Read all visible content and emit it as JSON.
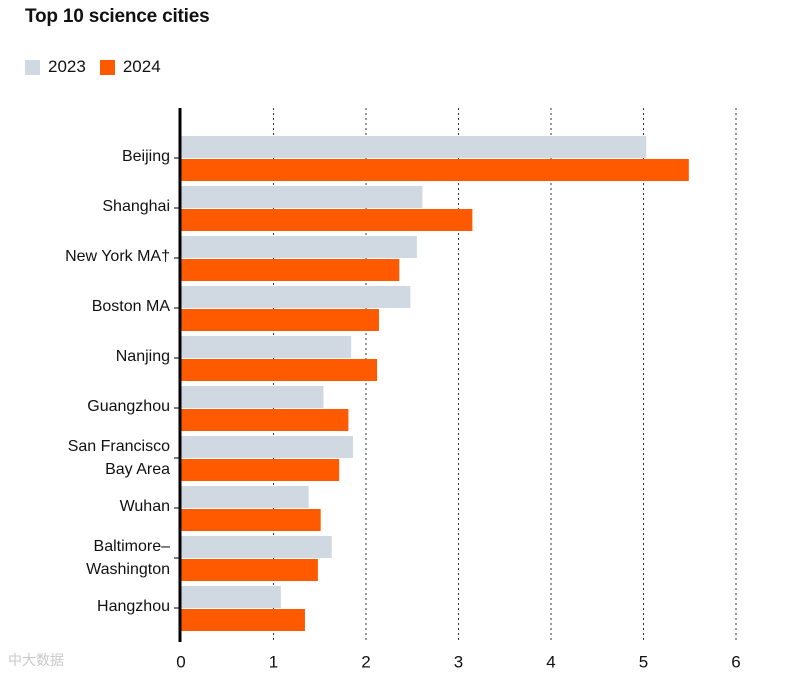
{
  "colors": {
    "s2023": "#d0d9e2",
    "s2024": "#ff5a00",
    "grid": "#333333",
    "axis": "#000000"
  },
  "chart_data": {
    "type": "bar",
    "orientation": "horizontal",
    "title": "Top 10 science cities",
    "categories": [
      [
        "Beijing"
      ],
      [
        "Shanghai"
      ],
      [
        "New York MA†"
      ],
      [
        "Boston MA"
      ],
      [
        "Nanjing"
      ],
      [
        "Guangzhou"
      ],
      [
        "San Francisco",
        "Bay Area"
      ],
      [
        "Wuhan"
      ],
      [
        "Baltimore–",
        "Washington"
      ],
      [
        "Hangzhou"
      ]
    ],
    "series": [
      {
        "name": "2023",
        "values": [
          5.03,
          2.61,
          2.55,
          2.48,
          1.84,
          1.54,
          1.86,
          1.38,
          1.63,
          1.08
        ]
      },
      {
        "name": "2024",
        "values": [
          5.49,
          3.15,
          2.36,
          2.14,
          2.12,
          1.81,
          1.71,
          1.51,
          1.48,
          1.34
        ]
      }
    ],
    "xlim": [
      0,
      6
    ],
    "xticks": [
      "0",
      "1",
      "2",
      "3",
      "4",
      "5",
      "6"
    ],
    "grid": "vertical dotted",
    "legend": "top-left"
  },
  "watermark": "中大数据"
}
